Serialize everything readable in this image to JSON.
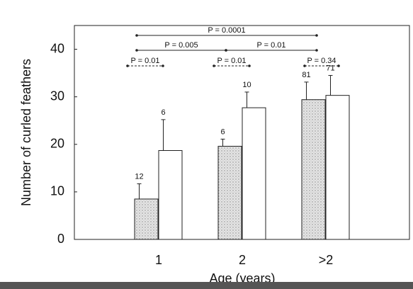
{
  "chart_data": {
    "type": "bar",
    "y_label": "Number of curled feathers",
    "x_label": "Age (years)",
    "categories": [
      "1",
      "2",
      ">2"
    ],
    "series": [
      {
        "color": "#dcdcdc",
        "pattern": "stipple",
        "values": [
          8.5,
          19.6,
          29.4
        ],
        "errors": [
          3.2,
          1.5,
          3.7
        ],
        "sample_sizes": [
          12,
          6,
          81
        ]
      },
      {
        "color": "#ffffff",
        "values": [
          18.7,
          27.7,
          30.3
        ],
        "errors": [
          6.5,
          3.3,
          4.2
        ],
        "sample_sizes": [
          6,
          10,
          71
        ]
      }
    ],
    "comparisons": [
      "P = 0.0001",
      "P = 0.005",
      "P = 0.01",
      "P = 0.01",
      "P = 0.01",
      "P = 0.34"
    ],
    "ylim": [
      0,
      45
    ],
    "yticks": [
      0,
      10,
      20,
      30,
      40
    ],
    "grid": false
  }
}
